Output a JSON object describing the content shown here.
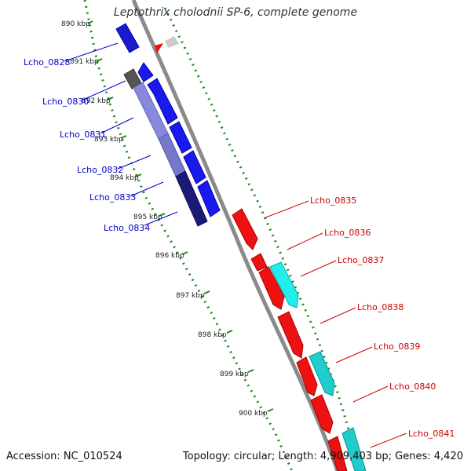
{
  "title": "Leptothrix cholodnii SP-6, complete genome",
  "footer": {
    "accession": "Accession: NC_010524",
    "summary": "Topology: circular; Length: 4,909,403 bp; Genes: 4,420"
  },
  "colors": {
    "backbone": "#8a8a8a",
    "tick": "#1e8a1e",
    "reverse_label": "#0000cc",
    "forward_label": "#cc0000"
  },
  "ticks": [
    "890 kbp",
    "891 kbp",
    "892 kbp",
    "893 kbp",
    "894 kbp",
    "895 kbp",
    "896 kbp",
    "897 kbp",
    "898 kbp",
    "899 kbp",
    "900 kbp"
  ],
  "genes_reverse": [
    "Lcho_0828",
    "Lcho_0830",
    "Lcho_0831",
    "Lcho_0832",
    "Lcho_0833",
    "Lcho_0834"
  ],
  "genes_forward": [
    "Lcho_0835",
    "Lcho_0836",
    "Lcho_0837",
    "Lcho_0838",
    "Lcho_0839",
    "Lcho_0840",
    "Lcho_0841"
  ]
}
